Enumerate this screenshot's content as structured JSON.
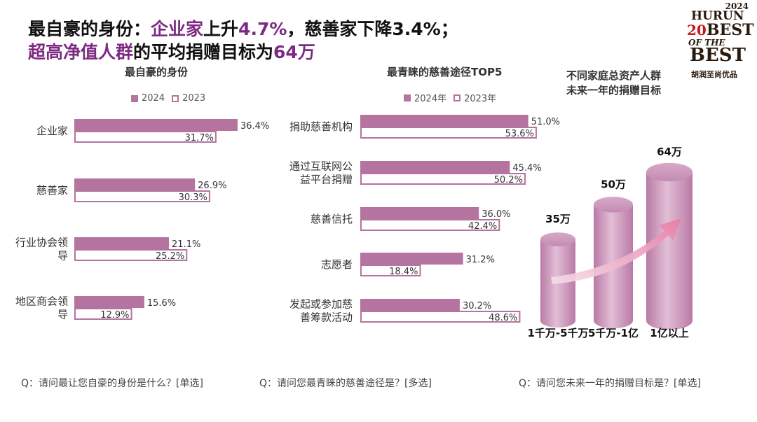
{
  "header": {
    "title_line1": {
      "p1": "最自豪的身份：",
      "h1": "企业家",
      "p2": "上升",
      "h2": "4.7%",
      "p3": "，慈善家下降3.4%；"
    },
    "title_line2": {
      "h1": "超高净值人群",
      "p1": "的平均捐赠目标为",
      "h2": "64万"
    }
  },
  "brand": {
    "year": "2024",
    "name": "HURUN",
    "number": "20",
    "best": "BEST",
    "of_the": "OF THE",
    "best2": "BEST",
    "cn": "胡润至尚优品"
  },
  "colors": {
    "accent": "#7d2b82",
    "bar_fill": "#b5739f",
    "bar_outline": "#b5739f",
    "pillar": "#c990b6"
  },
  "chart_data": [
    {
      "type": "bar",
      "orientation": "horizontal",
      "title": "最自豪的身份",
      "legend": [
        "2024",
        "2023"
      ],
      "categories": [
        "企业家",
        "慈善家",
        "行业协会领导",
        "地区商会领导"
      ],
      "category_lines": [
        [
          "企业家"
        ],
        [
          "慈善家"
        ],
        [
          "行业协会领",
          "导"
        ],
        [
          "地区商会领",
          "导"
        ]
      ],
      "series": [
        {
          "name": "2024",
          "values": [
            36.4,
            26.9,
            21.1,
            15.6
          ],
          "labels": [
            "36.4%",
            "26.9%",
            "21.1%",
            "15.6%"
          ]
        },
        {
          "name": "2023",
          "values": [
            31.7,
            30.3,
            25.2,
            12.9
          ],
          "labels": [
            "31.7%",
            "30.3%",
            "25.2%",
            "12.9%"
          ]
        }
      ],
      "unit": "%"
    },
    {
      "type": "bar",
      "orientation": "horizontal",
      "title": "最青睐的慈善途径TOP5",
      "legend": [
        "2024年",
        "2023年"
      ],
      "categories": [
        "捐助慈善机构",
        "通过互联网公益平台捐赠",
        "慈善信托",
        "志愿者",
        "发起或参加慈善筹款活动"
      ],
      "category_lines": [
        [
          "捐助慈善机构"
        ],
        [
          "通过互联网公",
          "益平台捐赠"
        ],
        [
          "慈善信托"
        ],
        [
          "志愿者"
        ],
        [
          "发起或参加慈",
          "善筹款活动"
        ]
      ],
      "series": [
        {
          "name": "2024年",
          "values": [
            51.0,
            45.4,
            36.0,
            31.2,
            30.2
          ],
          "labels": [
            "51.0%",
            "45.4%",
            "36.0%",
            "31.2%",
            "30.2%"
          ]
        },
        {
          "name": "2023年",
          "values": [
            53.6,
            50.2,
            42.4,
            18.4,
            48.6
          ],
          "labels": [
            "53.6%",
            "50.2%",
            "42.4%",
            "18.4%",
            "48.6%"
          ]
        }
      ],
      "unit": "%"
    },
    {
      "type": "bar",
      "style": "3d-cylinder",
      "title": "不同家庭总资产人群未来一年的捐赠目标",
      "title_lines": [
        "不同家庭总资产人群",
        "未来一年的捐赠目标"
      ],
      "categories": [
        "1千万-5千万",
        "5千万-1亿",
        "1亿以上"
      ],
      "values": [
        35,
        50,
        64
      ],
      "labels": [
        "35万",
        "50万",
        "64万"
      ],
      "unit": "万"
    }
  ],
  "questions": [
    "Q：请问最让您自豪的身份是什么？[单选]",
    "Q：请问您最青睐的慈善途径是？[多选]",
    "Q：请问您未来一年的捐赠目标是？[单选]"
  ]
}
